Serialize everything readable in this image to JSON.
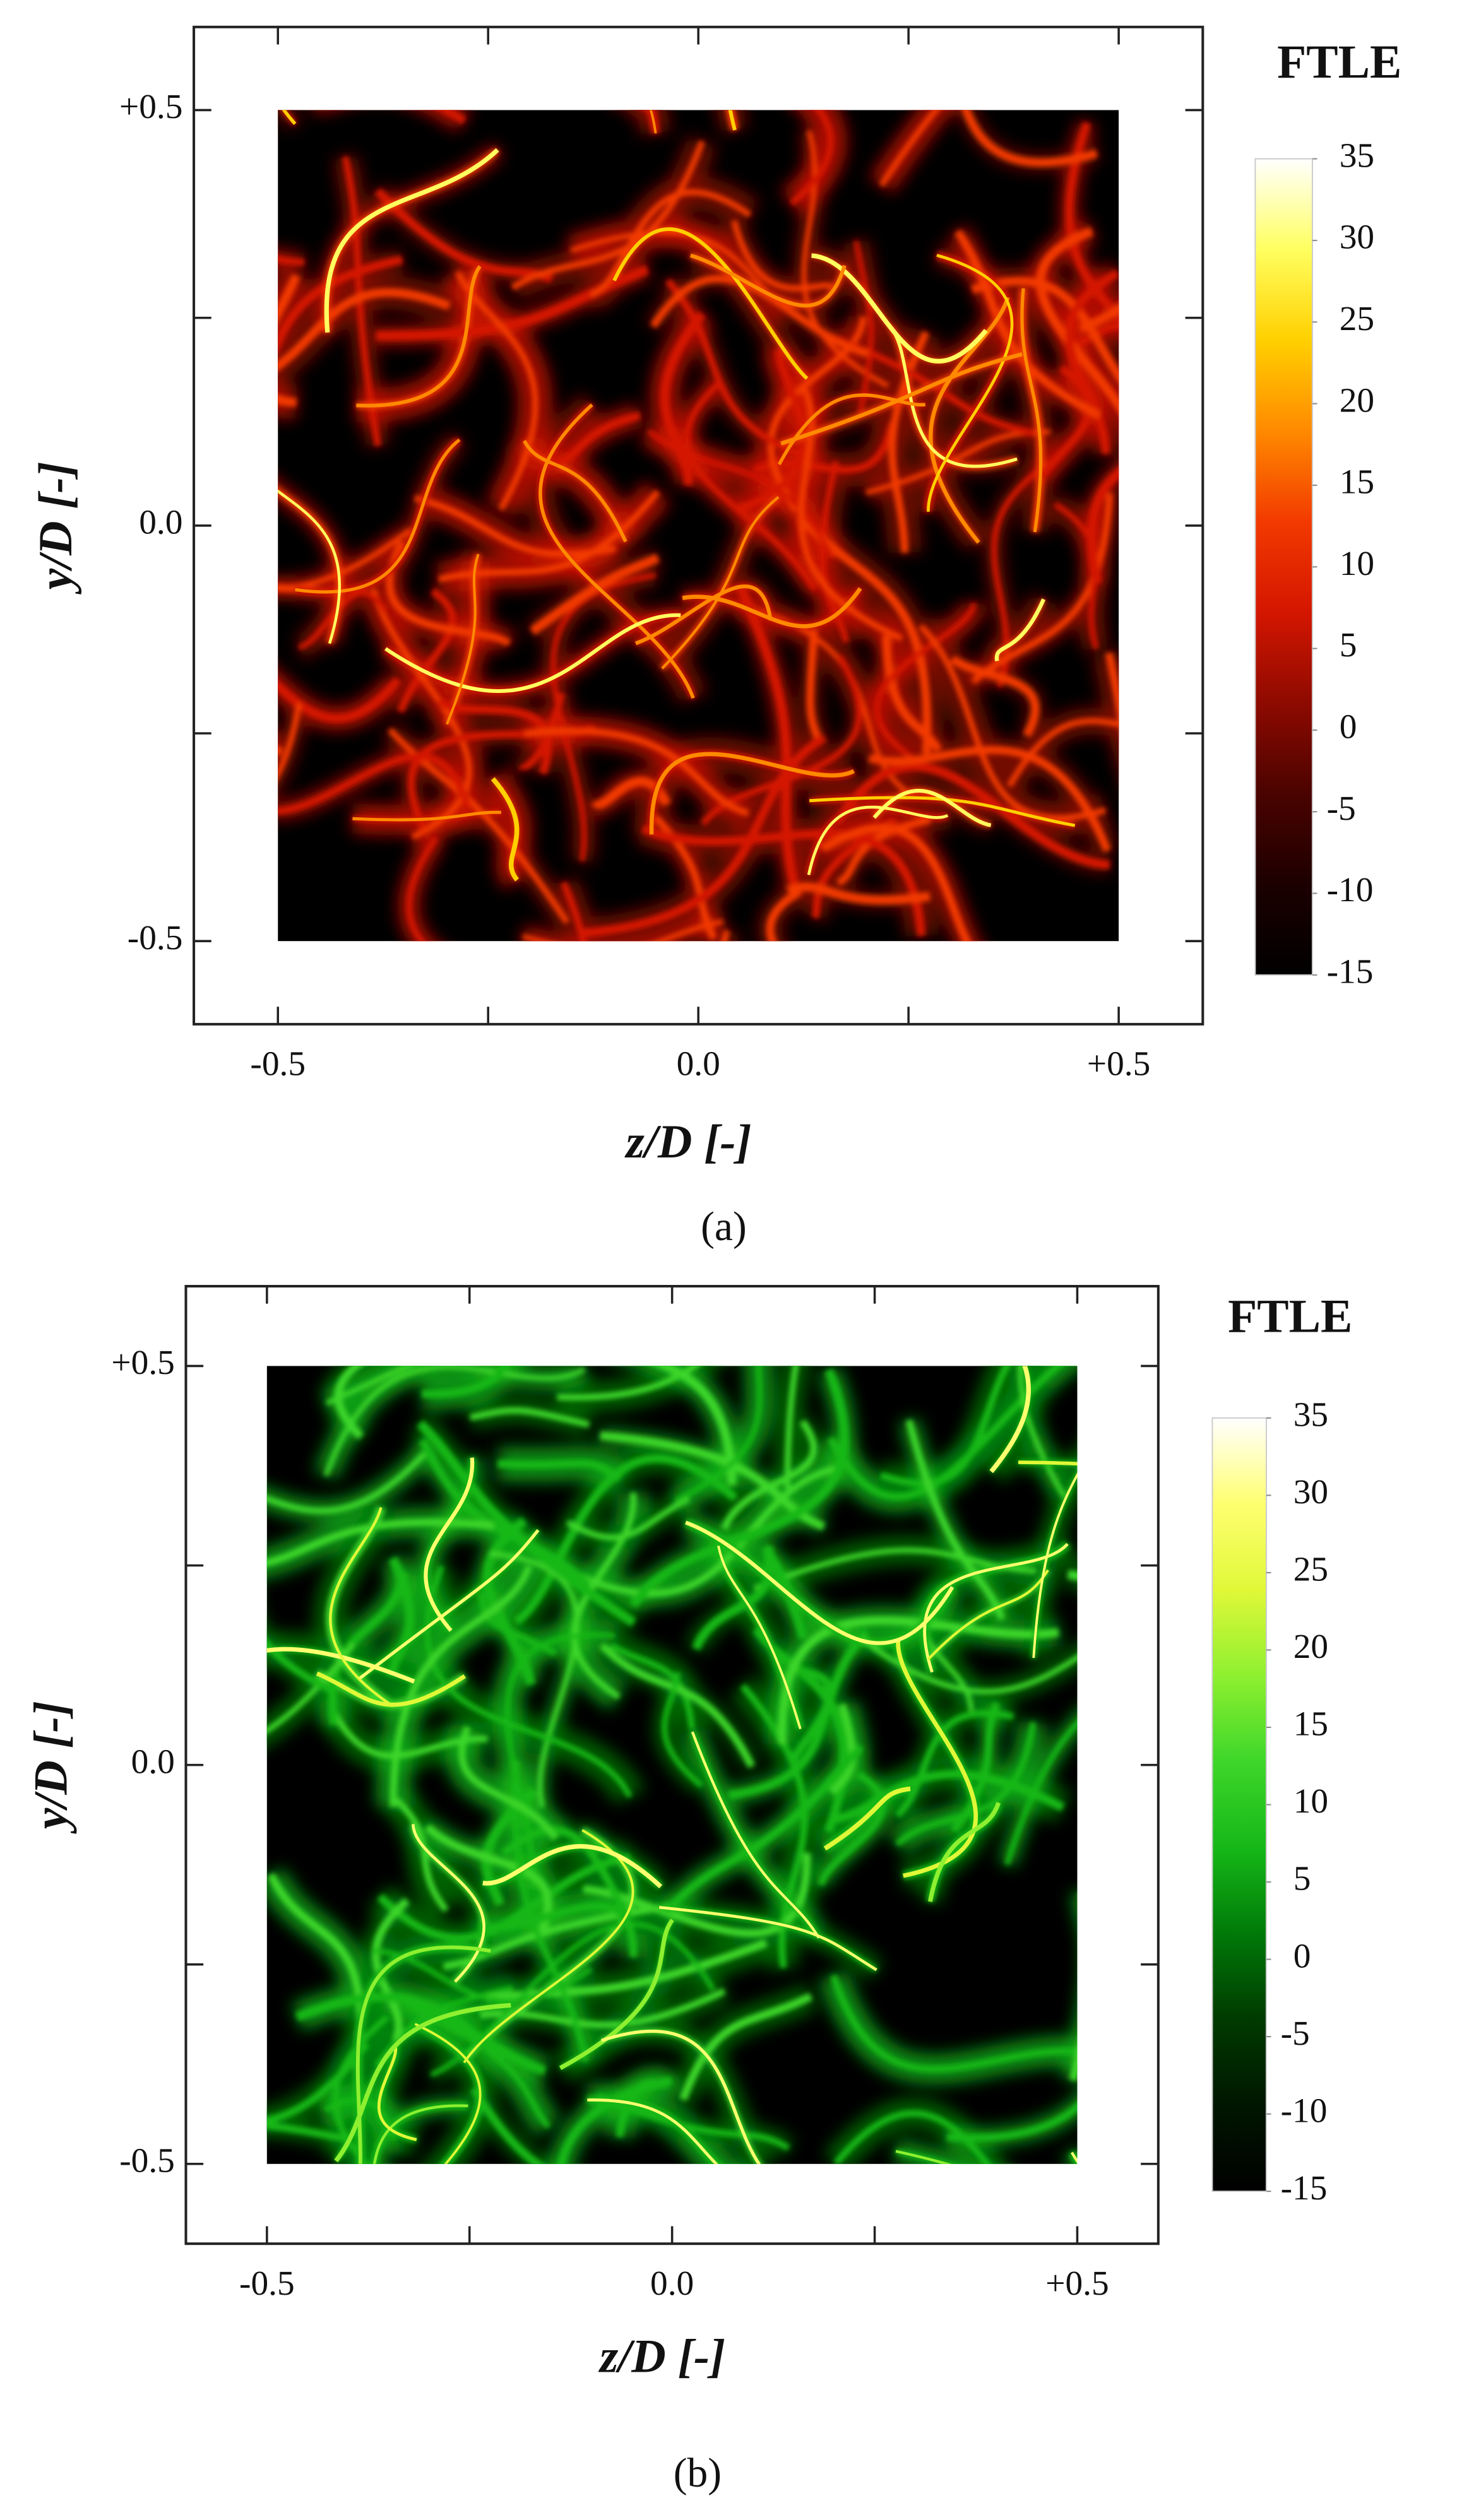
{
  "chart_data": [
    {
      "type": "heatmap",
      "panel_label": "(a)",
      "xlabel": "z/D [-]",
      "ylabel": "y/D [-]",
      "xlim": [
        -0.6,
        0.6
      ],
      "ylim": [
        -0.6,
        0.6
      ],
      "xticks": [
        -0.5,
        {
          "value": 0,
          "label": "0.0"
        },
        {
          "value": 0.5,
          "label": "+0.5"
        }
      ],
      "yticks": [
        -0.5,
        {
          "value": 0,
          "label": "0.0"
        },
        {
          "value": 0.5,
          "label": "+0.5"
        }
      ],
      "xminor_ticks": [
        -0.25,
        0.25
      ],
      "yminor_ticks": [
        -0.25,
        0.25
      ],
      "field_extent": [
        -0.5,
        0.5
      ],
      "colorbar": {
        "title": "FTLE",
        "lim": [
          -15,
          35
        ],
        "ticks": [
          -15,
          -10,
          -5,
          0,
          5,
          10,
          15,
          20,
          25,
          30,
          35
        ],
        "colors": [
          "#000000",
          "#1c0000",
          "#4a0300",
          "#8e0a00",
          "#d41600",
          "#f23a00",
          "#ff8a00",
          "#ffd000",
          "#ffff60",
          "#ffffff"
        ]
      }
    },
    {
      "type": "heatmap",
      "panel_label": "(b)",
      "xlabel": "z/D [-]",
      "ylabel": "y/D [-]",
      "xlim": [
        -0.6,
        0.6
      ],
      "ylim": [
        -0.6,
        0.6
      ],
      "xticks": [
        -0.5,
        {
          "value": 0,
          "label": "0.0"
        },
        {
          "value": 0.5,
          "label": "+0.5"
        }
      ],
      "yticks": [
        -0.5,
        {
          "value": 0,
          "label": "0.0"
        },
        {
          "value": 0.5,
          "label": "+0.5"
        }
      ],
      "xminor_ticks": [
        -0.25,
        0.25
      ],
      "yminor_ticks": [
        -0.25,
        0.25
      ],
      "field_extent": [
        -0.5,
        0.5
      ],
      "colorbar": {
        "title": "FTLE",
        "lim": [
          -15,
          35
        ],
        "ticks": [
          -15,
          -10,
          -5,
          0,
          5,
          10,
          15,
          20,
          25,
          30,
          35
        ],
        "colors": [
          "#000000",
          "#001600",
          "#003a00",
          "#007a08",
          "#16b818",
          "#3ed62a",
          "#8ef030",
          "#e0f838",
          "#ffff70",
          "#ffffff"
        ]
      }
    }
  ]
}
